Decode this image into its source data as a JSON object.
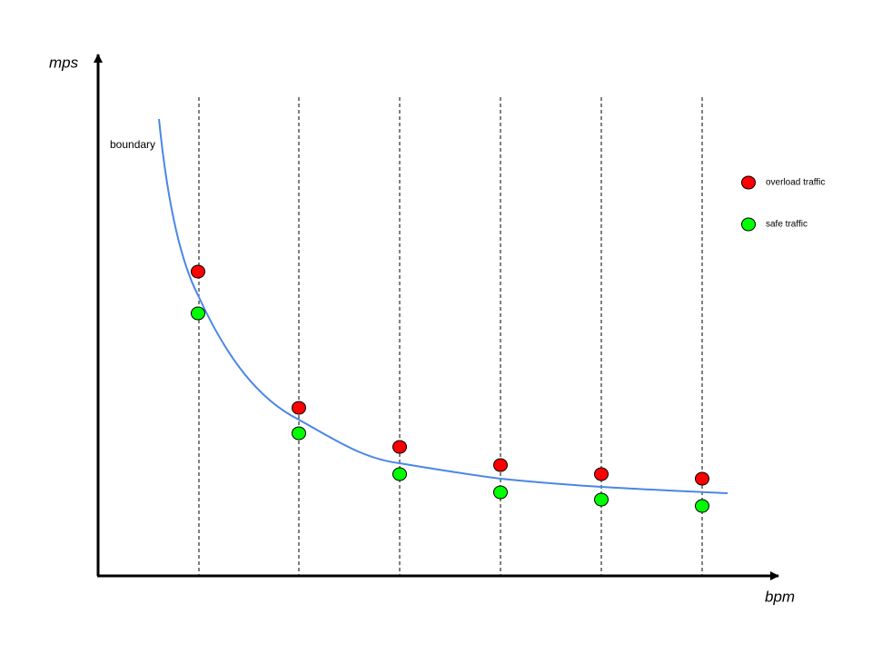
{
  "axes": {
    "y_label": "mps",
    "x_label": "bpm"
  },
  "curve_label": "boundary",
  "legend": {
    "overload": "overload traffic",
    "safe": "safe traffic"
  }
}
